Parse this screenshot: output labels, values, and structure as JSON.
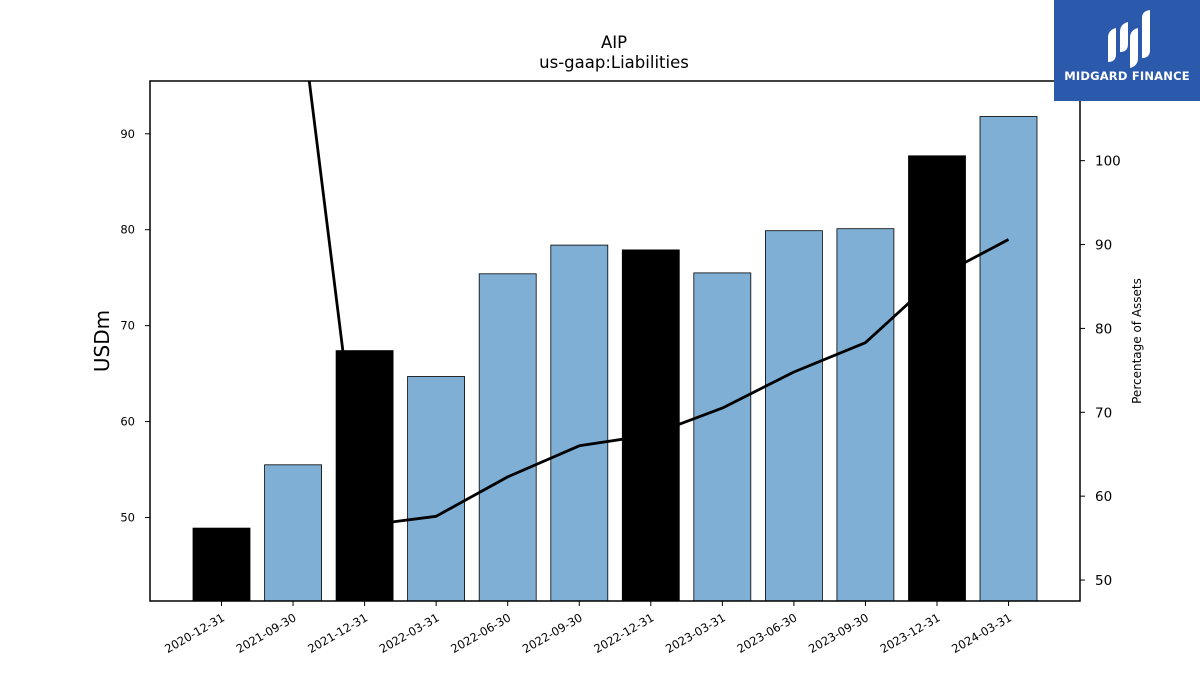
{
  "chart_data": {
    "type": "bar",
    "title": "AIP",
    "subtitle": "us-gaap:Liabilities",
    "ylabel": "USDm",
    "y2label": "Percentage of Assets",
    "categories": [
      "2020-12-31",
      "2021-09-30",
      "2021-12-31",
      "2022-03-31",
      "2022-06-30",
      "2022-09-30",
      "2022-12-31",
      "2023-03-31",
      "2023-06-30",
      "2023-09-30",
      "2023-12-31",
      "2024-03-31"
    ],
    "bar_values": [
      48.9,
      55.5,
      67.4,
      64.7,
      75.4,
      78.4,
      77.9,
      75.5,
      79.9,
      80.1,
      87.7,
      91.8
    ],
    "bar_colors": [
      "#000000",
      "#7fafd4",
      "#000000",
      "#7fafd4",
      "#7fafd4",
      "#7fafd4",
      "#000000",
      "#7fafd4",
      "#7fafd4",
      "#7fafd4",
      "#000000",
      "#7fafd4"
    ],
    "line_values": [
      null,
      125.0,
      56.5,
      57.6,
      62.3,
      66.0,
      67.3,
      70.5,
      74.8,
      78.3,
      86.1,
      90.6
    ],
    "line_color": "#000000",
    "ylim": [
      41.3,
      95.5
    ],
    "y_ticks": [
      50,
      60,
      70,
      80,
      90
    ],
    "y2lim": [
      47.5,
      109.5
    ],
    "y2_ticks": [
      50,
      60,
      70,
      80,
      90,
      100
    ]
  },
  "logo": {
    "text": "MIDGARD FINANCE",
    "icon": "midgard-logo-icon",
    "bg_color": "#2b5aad"
  }
}
